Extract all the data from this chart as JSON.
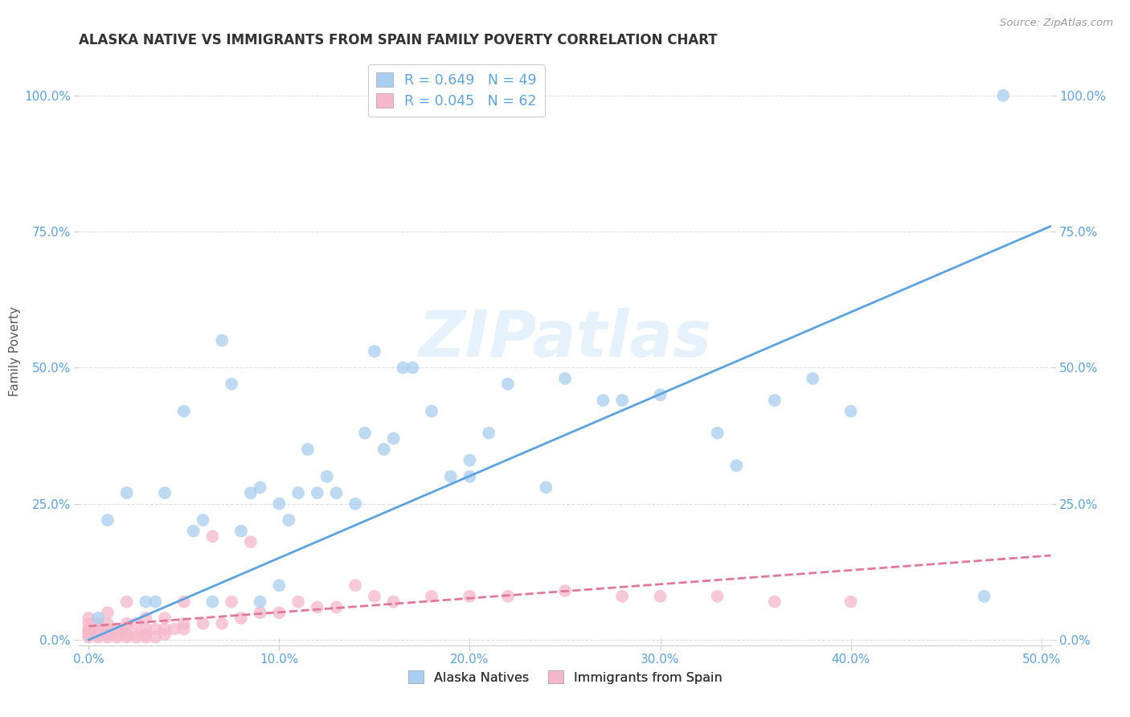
{
  "title": "ALASKA NATIVE VS IMMIGRANTS FROM SPAIN FAMILY POVERTY CORRELATION CHART",
  "source": "Source: ZipAtlas.com",
  "xlabel": "",
  "ylabel": "Family Poverty",
  "xticklabels": [
    "0.0%",
    "10.0%",
    "20.0%",
    "30.0%",
    "40.0%",
    "50.0%"
  ],
  "yticklabels": [
    "0.0%",
    "25.0%",
    "50.0%",
    "75.0%",
    "100.0%"
  ],
  "xlim": [
    -0.005,
    0.505
  ],
  "ylim": [
    -0.01,
    1.07
  ],
  "legend1_r": "0.649",
  "legend1_n": "49",
  "legend2_r": "0.045",
  "legend2_n": "62",
  "legend1_label": "Alaska Natives",
  "legend2_label": "Immigrants from Spain",
  "blue_color": "#a8cef0",
  "pink_color": "#f5b8cb",
  "blue_line_color": "#5ba3e0",
  "pink_line_color": "#e07898",
  "title_color": "#333333",
  "axis_label_color": "#555555",
  "tick_color": "#5ba3e0",
  "watermark_text": "ZIPatlas",
  "blue_scatter_x": [
    0.005,
    0.01,
    0.02,
    0.03,
    0.035,
    0.04,
    0.05,
    0.055,
    0.06,
    0.065,
    0.07,
    0.075,
    0.08,
    0.085,
    0.09,
    0.09,
    0.1,
    0.1,
    0.105,
    0.11,
    0.115,
    0.12,
    0.125,
    0.13,
    0.14,
    0.145,
    0.15,
    0.155,
    0.16,
    0.165,
    0.17,
    0.18,
    0.19,
    0.2,
    0.2,
    0.21,
    0.22,
    0.24,
    0.25,
    0.27,
    0.28,
    0.3,
    0.33,
    0.34,
    0.36,
    0.38,
    0.4,
    0.47,
    0.48
  ],
  "blue_scatter_y": [
    0.04,
    0.22,
    0.27,
    0.07,
    0.07,
    0.27,
    0.42,
    0.2,
    0.22,
    0.07,
    0.55,
    0.47,
    0.2,
    0.27,
    0.07,
    0.28,
    0.25,
    0.1,
    0.22,
    0.27,
    0.35,
    0.27,
    0.3,
    0.27,
    0.25,
    0.38,
    0.53,
    0.35,
    0.37,
    0.5,
    0.5,
    0.42,
    0.3,
    0.33,
    0.3,
    0.38,
    0.47,
    0.28,
    0.48,
    0.44,
    0.44,
    0.45,
    0.38,
    0.32,
    0.44,
    0.48,
    0.42,
    0.08,
    1.0
  ],
  "pink_scatter_x": [
    0.0,
    0.0,
    0.0,
    0.0,
    0.0,
    0.0,
    0.005,
    0.005,
    0.005,
    0.005,
    0.01,
    0.01,
    0.01,
    0.01,
    0.01,
    0.015,
    0.015,
    0.015,
    0.02,
    0.02,
    0.02,
    0.02,
    0.02,
    0.025,
    0.025,
    0.025,
    0.03,
    0.03,
    0.03,
    0.03,
    0.035,
    0.035,
    0.04,
    0.04,
    0.04,
    0.045,
    0.05,
    0.05,
    0.05,
    0.06,
    0.065,
    0.07,
    0.075,
    0.08,
    0.085,
    0.09,
    0.1,
    0.11,
    0.12,
    0.13,
    0.14,
    0.15,
    0.16,
    0.18,
    0.2,
    0.22,
    0.25,
    0.28,
    0.3,
    0.33,
    0.36,
    0.4
  ],
  "pink_scatter_y": [
    0.005,
    0.01,
    0.015,
    0.02,
    0.03,
    0.04,
    0.005,
    0.01,
    0.02,
    0.03,
    0.005,
    0.01,
    0.02,
    0.03,
    0.05,
    0.005,
    0.01,
    0.02,
    0.005,
    0.01,
    0.02,
    0.03,
    0.07,
    0.005,
    0.01,
    0.03,
    0.005,
    0.01,
    0.02,
    0.04,
    0.005,
    0.02,
    0.01,
    0.02,
    0.04,
    0.02,
    0.02,
    0.03,
    0.07,
    0.03,
    0.19,
    0.03,
    0.07,
    0.04,
    0.18,
    0.05,
    0.05,
    0.07,
    0.06,
    0.06,
    0.1,
    0.08,
    0.07,
    0.08,
    0.08,
    0.08,
    0.09,
    0.08,
    0.08,
    0.08,
    0.07,
    0.07
  ],
  "blue_trend_x": [
    0.0,
    0.505
  ],
  "blue_trend_y": [
    0.0,
    0.76
  ],
  "pink_trend_x": [
    0.0,
    0.505
  ],
  "pink_trend_y": [
    0.025,
    0.155
  ],
  "grid_color": "#e0e0e0",
  "background_color": "#ffffff",
  "yticks": [
    0.0,
    0.25,
    0.5,
    0.75,
    1.0
  ],
  "xticks": [
    0.0,
    0.1,
    0.2,
    0.3,
    0.4,
    0.5
  ]
}
